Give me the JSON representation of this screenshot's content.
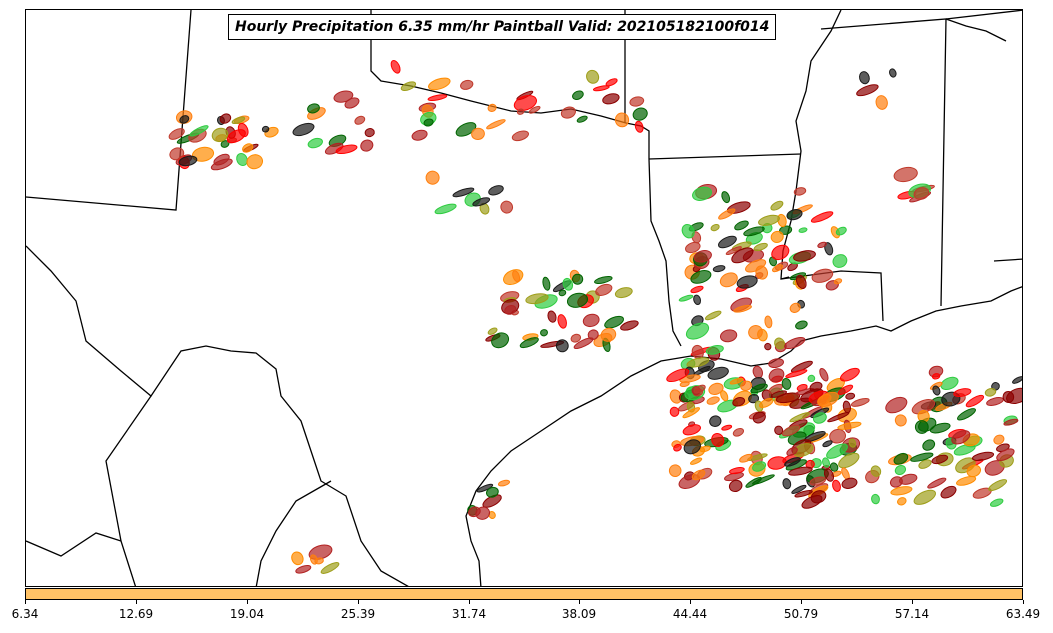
{
  "title": "Hourly Precipitation 6.35 mm/hr Paintball Valid: 202105182100f014",
  "colorbar": {
    "color": "#ffc266",
    "ticks": [
      "6.34",
      "12.69",
      "19.04",
      "25.39",
      "31.74",
      "38.09",
      "44.44",
      "50.79",
      "57.14",
      "63.49"
    ]
  },
  "member_colors": [
    "#2ecc40",
    "#ff7f0e",
    "#ff0000",
    "#8b0000",
    "#9e9e1a",
    "#006400",
    "#1a1a1a",
    "#b22222",
    "#ff8c00",
    "#c0392b"
  ]
}
